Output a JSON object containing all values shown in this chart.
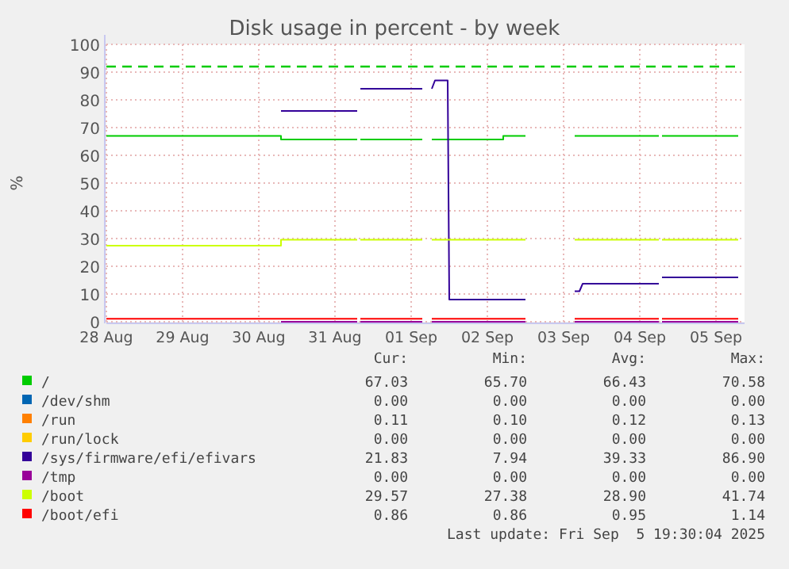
{
  "chart_data": {
    "type": "line",
    "title": "Disk usage in percent - by week",
    "ylabel": "%",
    "xlim": [
      "2025-08-28T00:00",
      "2025-09-05T09:00"
    ],
    "xticks": [
      {
        "value": "2025-08-28",
        "label": "28 Aug"
      },
      {
        "value": "2025-08-29",
        "label": "29 Aug"
      },
      {
        "value": "2025-08-30",
        "label": "30 Aug"
      },
      {
        "value": "2025-08-31",
        "label": "31 Aug"
      },
      {
        "value": "2025-09-01",
        "label": "01 Sep"
      },
      {
        "value": "2025-09-02",
        "label": "02 Sep"
      },
      {
        "value": "2025-09-03",
        "label": "03 Sep"
      },
      {
        "value": "2025-09-04",
        "label": "04 Sep"
      },
      {
        "value": "2025-09-05",
        "label": "05 Sep"
      }
    ],
    "ylim": [
      0,
      100
    ],
    "yticks": [
      0,
      10,
      20,
      30,
      40,
      50,
      60,
      70,
      80,
      90,
      100
    ],
    "grid": true,
    "legend": "bottom",
    "line_style": "solid",
    "ref_lines": [
      {
        "axis": "y",
        "value": 92,
        "color": "#00cc00",
        "line_style": "dashed"
      }
    ],
    "series": [
      {
        "name": "/",
        "color": "#00cc00",
        "x": [
          "2025-08-28T00:00",
          "2025-08-30T07:00",
          "2025-08-30T07:00",
          "2025-08-31T07:00",
          "2025-08-31T07:30",
          "2025-08-31T08:00",
          "2025-09-01T03:30",
          "2025-09-01T05:00",
          "2025-09-01T06:30",
          "2025-09-02T05:00",
          "2025-09-02T05:00",
          "2025-09-02T12:00",
          "2025-09-02T20:00",
          "2025-09-03T03:30",
          "2025-09-04T06:00",
          "2025-09-04T06:30",
          "2025-09-04T07:00",
          "2025-09-05T07:00"
        ],
        "values": [
          67,
          67,
          65.7,
          65.7,
          null,
          65.7,
          65.7,
          null,
          65.7,
          65.7,
          67,
          67,
          null,
          67,
          67,
          null,
          67,
          67
        ]
      },
      {
        "name": "/dev/shm",
        "color": "#0066b3"
      },
      {
        "name": "/run",
        "color": "#ff8000"
      },
      {
        "name": "/run/lock",
        "color": "#ffcc00"
      },
      {
        "name": "/sys/firmware/efi/efivars",
        "color": "#330099",
        "x": [
          "2025-08-30T07:00",
          "2025-08-31T07:00",
          "2025-08-31T07:30",
          "2025-08-31T08:00",
          "2025-09-01T03:30",
          "2025-09-01T05:00",
          "2025-09-01T06:30",
          "2025-09-01T07:30",
          "2025-09-01T11:30",
          "2025-09-01T12:00",
          "2025-09-02T12:00",
          "2025-09-02T20:00",
          "2025-09-03T03:30",
          "2025-09-03T05:00",
          "2025-09-03T06:00",
          "2025-09-04T06:00",
          "2025-09-04T06:30",
          "2025-09-04T07:00",
          "2025-09-05T07:00"
        ],
        "values": [
          76,
          76,
          null,
          84,
          84,
          null,
          84,
          87,
          87,
          8,
          8,
          null,
          11,
          11,
          13.7,
          13.7,
          null,
          16,
          16
        ]
      },
      {
        "name": "/tmp",
        "color": "#990099",
        "x": [
          "2025-08-30T07:00",
          "2025-08-30T07:00",
          "2025-08-31T07:00",
          "2025-08-31T07:30",
          "2025-08-31T08:00",
          "2025-09-01T03:30",
          "2025-09-01T05:00",
          "2025-09-01T06:30",
          "2025-09-02T05:00",
          "2025-09-02T05:00",
          "2025-09-02T12:00",
          "2025-09-02T20:00",
          "2025-09-03T03:30",
          "2025-09-04T06:00",
          "2025-09-04T06:30",
          "2025-09-04T07:00",
          "2025-09-05T07:00"
        ],
        "values": [
          0,
          0,
          0,
          null,
          0,
          0,
          null,
          0,
          0,
          0,
          0,
          null,
          0,
          0,
          null,
          0,
          0
        ]
      },
      {
        "name": "/boot",
        "color": "#ccff00",
        "x": [
          "2025-08-28T00:00",
          "2025-08-30T07:00",
          "2025-08-30T07:00",
          "2025-08-31T07:00",
          "2025-08-31T07:30",
          "2025-08-31T08:00",
          "2025-09-01T03:30",
          "2025-09-01T05:00",
          "2025-09-01T06:30",
          "2025-09-02T05:00",
          "2025-09-02T05:00",
          "2025-09-02T12:00",
          "2025-09-02T20:00",
          "2025-09-03T03:30",
          "2025-09-04T06:00",
          "2025-09-04T06:30",
          "2025-09-04T07:00",
          "2025-09-05T07:00"
        ],
        "values": [
          27.4,
          27.4,
          29.6,
          29.6,
          null,
          29.6,
          29.6,
          null,
          29.6,
          29.6,
          29.6,
          29.6,
          null,
          29.6,
          29.6,
          null,
          29.6,
          29.6
        ]
      },
      {
        "name": "/boot/efi",
        "color": "#ff0000",
        "x": [
          "2025-08-28T00:00",
          "2025-08-30T07:00",
          "2025-08-30T07:00",
          "2025-08-31T07:00",
          "2025-08-31T07:30",
          "2025-08-31T08:00",
          "2025-09-01T03:30",
          "2025-09-01T05:00",
          "2025-09-01T06:30",
          "2025-09-02T05:00",
          "2025-09-02T05:00",
          "2025-09-02T12:00",
          "2025-09-02T20:00",
          "2025-09-03T03:30",
          "2025-09-04T06:00",
          "2025-09-04T06:30",
          "2025-09-04T07:00",
          "2025-09-05T07:00"
        ],
        "values": [
          1.1,
          1.1,
          1.1,
          1.1,
          null,
          1.1,
          1.1,
          null,
          1.1,
          1.1,
          1.1,
          1.1,
          null,
          1.1,
          1.1,
          null,
          1.1,
          1.1
        ]
      }
    ],
    "annotations": [
      "Cur:",
      "Min:",
      "Avg:",
      "Max:",
      "67.03",
      "65.70",
      "66.43",
      "70.58",
      "0.00",
      "0.00",
      "0.00",
      "0.00",
      "0.11",
      "0.10",
      "0.12",
      "0.13",
      "0.00",
      "0.00",
      "0.00",
      "0.00",
      "21.83",
      "7.94",
      "39.33",
      "86.90",
      "0.00",
      "0.00",
      "0.00",
      "0.00",
      "29.57",
      "27.38",
      "28.90",
      "41.74",
      "0.86",
      "0.86",
      "0.95",
      "1.14",
      "Last update: Fri Sep  5 19:30:04 2025"
    ]
  }
}
